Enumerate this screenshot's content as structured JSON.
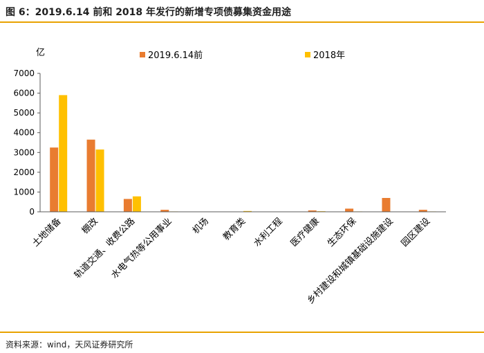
{
  "figure": {
    "title": "图 6：2019.6.14 前和 2018 年发行的新增专项债募集资金用途",
    "source": "资料来源：wind，天风证券研究所"
  },
  "chart_data": {
    "type": "bar",
    "title": "",
    "ylabel": "亿",
    "xlabel": "",
    "ylim": [
      0,
      7000
    ],
    "yticks": [
      0,
      1000,
      2000,
      3000,
      4000,
      5000,
      6000,
      7000
    ],
    "grid": false,
    "legend_position": "top-center",
    "categories": [
      "土地储备",
      "棚改",
      "轨道交通、收费公路",
      "水电气热等公用事业",
      "机场",
      "教育类",
      "水利工程",
      "医疗健康",
      "生态环保",
      "乡村建设和城镇基础设施建设",
      "园区建设"
    ],
    "series": [
      {
        "name": "2019.6.14前",
        "color": "#e97c30",
        "values": [
          3250,
          3650,
          650,
          100,
          10,
          10,
          10,
          70,
          160,
          700,
          100
        ]
      },
      {
        "name": "2018年",
        "color": "#ffc000",
        "values": [
          5900,
          3150,
          780,
          20,
          5,
          40,
          10,
          30,
          20,
          10,
          20
        ]
      }
    ]
  }
}
